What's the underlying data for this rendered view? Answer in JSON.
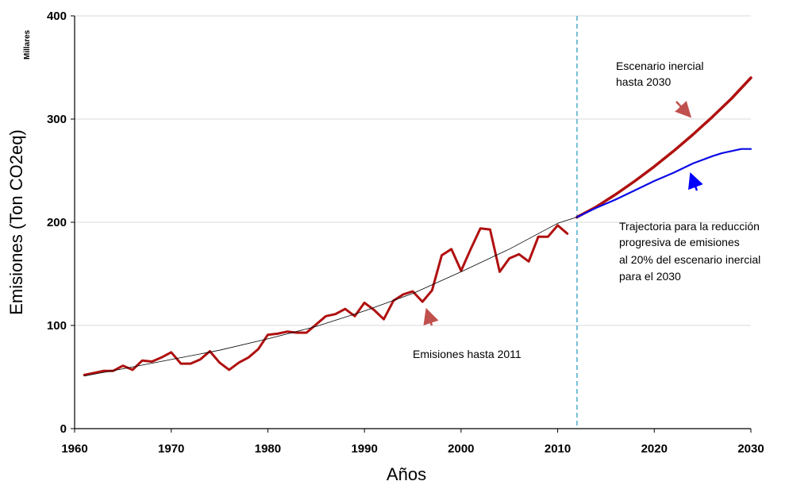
{
  "chart_data": {
    "type": "line",
    "xlabel": "Años",
    "ylabel": "Emisiones (Ton CO2eq)",
    "y_unit_label": "Millares",
    "xlim": [
      1960,
      2030
    ],
    "ylim": [
      0,
      400
    ],
    "x_ticks": [
      "1960",
      "1970",
      "1980",
      "1990",
      "2000",
      "2010",
      "2020",
      "2030"
    ],
    "y_ticks": [
      "0",
      "100",
      "200",
      "300",
      "400"
    ],
    "grid": true,
    "vertical_marker_x": 2012,
    "series": [
      {
        "color": "#b01010",
        "x": [
          1961,
          1962,
          1963,
          1964,
          1965,
          1966,
          1967,
          1968,
          1969,
          1970,
          1971,
          1972,
          1973,
          1974,
          1975,
          1976,
          1977,
          1978,
          1979,
          1980,
          1981,
          1982,
          1983,
          1984,
          1985,
          1986,
          1987,
          1988,
          1989,
          1990,
          1991,
          1992,
          1993,
          1994,
          1995,
          1996,
          1997,
          1998,
          1999,
          2000,
          2001,
          2002,
          2003,
          2004,
          2005,
          2006,
          2007,
          2008,
          2009,
          2010,
          2011
        ],
        "values": [
          52,
          54,
          56,
          56,
          61,
          57,
          66,
          65,
          69,
          74,
          63,
          63,
          67,
          75,
          64,
          57,
          64,
          69,
          77,
          91,
          92,
          94,
          93,
          93,
          101,
          109,
          111,
          116,
          109,
          122,
          115,
          106,
          124,
          130,
          133,
          123,
          134,
          168,
          174,
          153,
          174,
          194,
          193,
          152,
          165,
          169,
          162,
          186,
          186,
          197,
          189
        ]
      },
      {
        "color": "#b01010",
        "x": [
          2012,
          2014,
          2016,
          2018,
          2020,
          2022,
          2024,
          2026,
          2028,
          2030
        ],
        "values": [
          205,
          215,
          227,
          240,
          254,
          269,
          285,
          302,
          320,
          340
        ]
      },
      {
        "color": "#0a0ae6",
        "x": [
          2012,
          2014,
          2016,
          2018,
          2020,
          2022,
          2024,
          2026,
          2027,
          2028,
          2029,
          2030
        ],
        "values": [
          205,
          214,
          222,
          231,
          240,
          248,
          257,
          264,
          267,
          269,
          271,
          271
        ]
      },
      {
        "color": "#000000",
        "x": [
          1961,
          1965,
          1970,
          1975,
          1980,
          1985,
          1990,
          1995,
          2000,
          2005,
          2010,
          2012
        ],
        "values": [
          51,
          58,
          67,
          76,
          87,
          99,
          114,
          131,
          152,
          174,
          199,
          205
        ]
      }
    ],
    "annotations": [
      {
        "text": "Escenario inercial",
        "text2": "hasta 2030"
      },
      {
        "text": "Trajectoria para la reducción",
        "text2": "progresiva de emisiones",
        "text3": "al 20% del escenario inercial",
        "text4": "para el 2030"
      },
      {
        "text": "Emisiones hasta 2011"
      }
    ],
    "arrow_colors": [
      "#c0504d",
      "#0000ff"
    ]
  }
}
